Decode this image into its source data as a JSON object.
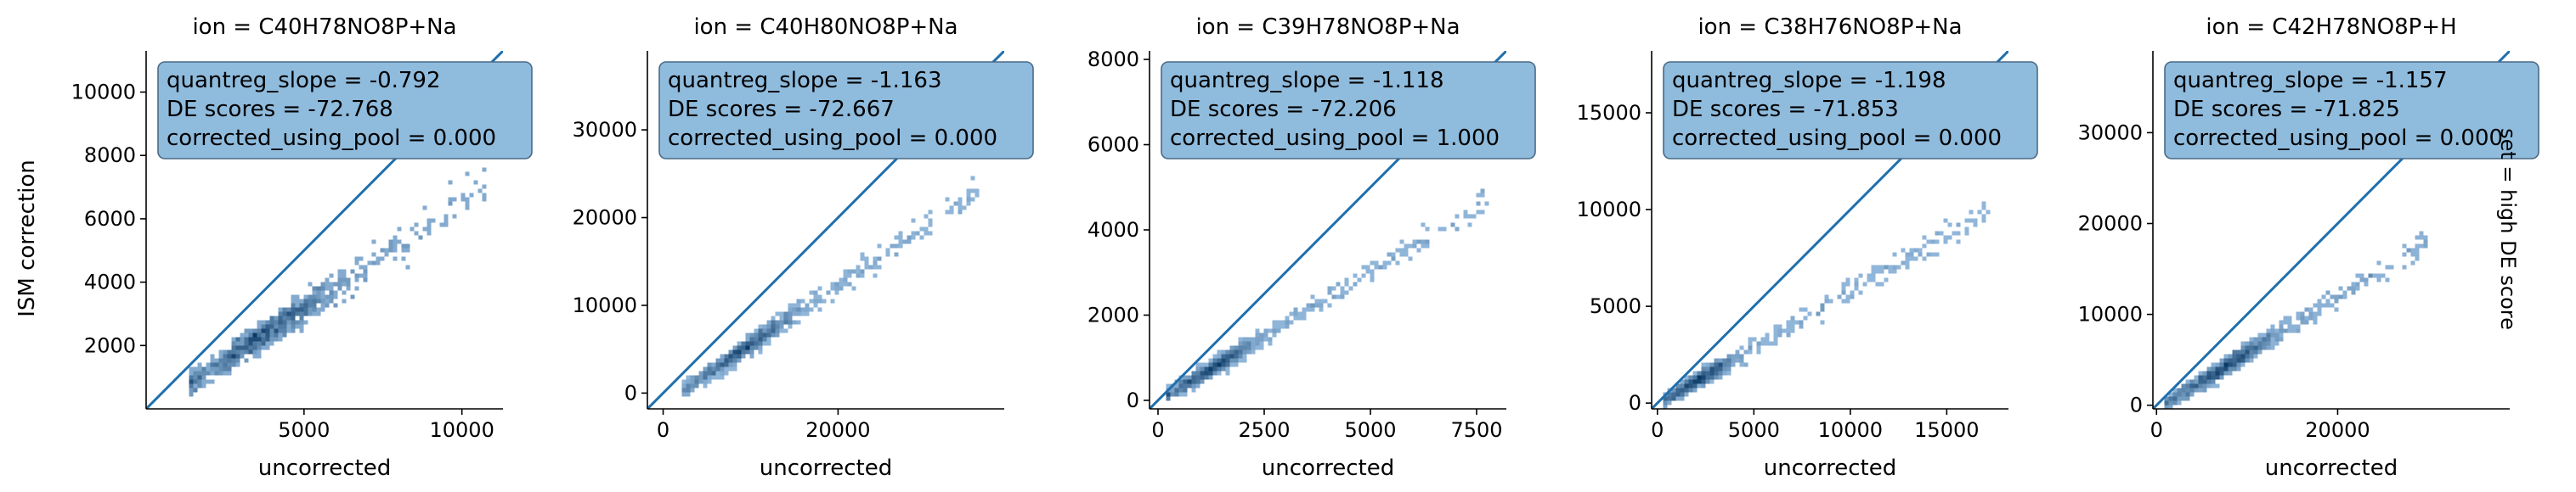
{
  "figure": {
    "row_label": "set = high DE score",
    "colors": {
      "line": "#1f6fad",
      "box_fill": "#8fbbdd",
      "box_edge": "#4a6a86",
      "hex_light": "#a9cdef",
      "hex_dark": "#0b3a66"
    }
  },
  "chart_data": [
    {
      "type": "scatter",
      "title": "ion = C40H78NO8P+Na",
      "xlabel": "uncorrected",
      "ylabel": "ISM correction",
      "xlim": [
        0,
        11300
      ],
      "ylim": [
        0,
        11300
      ],
      "xticks": [
        5000,
        10000
      ],
      "yticks": [
        2000,
        4000,
        6000,
        8000,
        10000
      ],
      "annotation": [
        "quantreg_slope = -0.792",
        "DE scores = -72.768",
        "corrected_using_pool = 0.000"
      ],
      "reference_line": {
        "slope": 1,
        "intercept": 0
      },
      "density": {
        "x0": 1400,
        "x1": 10800,
        "y_at_x0": 800,
        "y_at_x1": 7000,
        "core_x": 3800,
        "core_y": 2500,
        "spread_y": 550
      }
    },
    {
      "type": "scatter",
      "title": "ion = C40H80NO8P+Na",
      "xlabel": "uncorrected",
      "ylabel": "",
      "xlim": [
        -1800,
        39000
      ],
      "ylim": [
        -1800,
        39000
      ],
      "xticks": [
        0,
        20000
      ],
      "yticks": [
        0,
        10000,
        20000,
        30000
      ],
      "annotation": [
        "quantreg_slope = -1.163",
        "DE scores = -72.667",
        "corrected_using_pool = 0.000"
      ],
      "reference_line": {
        "slope": 1,
        "intercept": 0
      },
      "density": {
        "x0": 2500,
        "x1": 36000,
        "y_at_x0": 500,
        "y_at_x1": 23000,
        "core_x": 9500,
        "core_y": 4500,
        "spread_y": 1300
      }
    },
    {
      "type": "scatter",
      "title": "ion = C39H78NO8P+Na",
      "xlabel": "uncorrected",
      "ylabel": "",
      "xlim": [
        -200,
        8200
      ],
      "ylim": [
        -200,
        8200
      ],
      "xticks": [
        0,
        2500,
        5000,
        7500
      ],
      "yticks": [
        0,
        2000,
        4000,
        6000,
        8000
      ],
      "annotation": [
        "quantreg_slope = -1.118",
        "DE scores = -72.206",
        "corrected_using_pool = 1.000"
      ],
      "reference_line": {
        "slope": 1,
        "intercept": 0
      },
      "density": {
        "x0": 200,
        "x1": 7800,
        "y_at_x0": 100,
        "y_at_x1": 4700,
        "core_x": 1300,
        "core_y": 600,
        "spread_y": 260
      }
    },
    {
      "type": "scatter",
      "title": "ion = C38H76NO8P+Na",
      "xlabel": "uncorrected",
      "ylabel": "",
      "xlim": [
        -300,
        18200
      ],
      "ylim": [
        -300,
        18200
      ],
      "xticks": [
        0,
        5000,
        10000,
        15000
      ],
      "yticks": [
        0,
        5000,
        10000,
        15000
      ],
      "annotation": [
        "quantreg_slope = -1.198",
        "DE scores = -71.853",
        "corrected_using_pool = 0.000"
      ],
      "reference_line": {
        "slope": 1,
        "intercept": 0
      },
      "density": {
        "x0": 300,
        "x1": 17200,
        "y_at_x0": 100,
        "y_at_x1": 10000,
        "core_x": 2300,
        "core_y": 900,
        "spread_y": 550
      }
    },
    {
      "type": "scatter",
      "title": "ion = C42H78NO8P+H",
      "xlabel": "uncorrected",
      "ylabel": "",
      "xlim": [
        -400,
        39000
      ],
      "ylim": [
        -400,
        39000
      ],
      "xticks": [
        0,
        20000
      ],
      "yticks": [
        0,
        10000,
        20000,
        30000
      ],
      "annotation": [
        "quantreg_slope = -1.157",
        "DE scores = -71.825",
        "corrected_using_pool = 0.000"
      ],
      "reference_line": {
        "slope": 1,
        "intercept": 0
      },
      "density": {
        "x0": 1200,
        "x1": 30000,
        "y_at_x0": 300,
        "y_at_x1": 18000,
        "core_x": 7500,
        "core_y": 3500,
        "spread_y": 1200
      }
    }
  ]
}
